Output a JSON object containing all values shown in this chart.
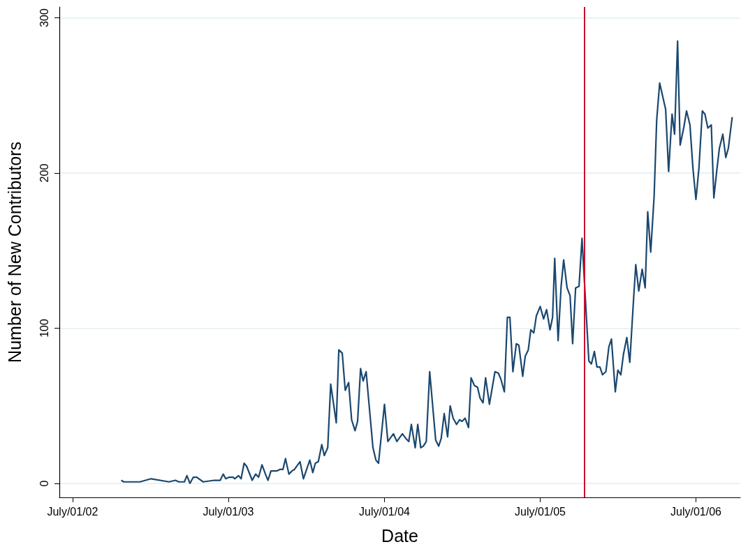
{
  "chart_data": {
    "type": "line",
    "xlabel": "Date",
    "ylabel": "Number of New Contributors",
    "grid": "y",
    "marker": "none",
    "line_style": "solid",
    "xlim": [
      "2002-05-31",
      "2006-10-13"
    ],
    "ylim": [
      -9,
      307
    ],
    "xticks": [
      {
        "value": "2002-07-01",
        "label": "July/01/02"
      },
      {
        "value": "2003-07-01",
        "label": "July/01/03"
      },
      {
        "value": "2004-07-01",
        "label": "July/01/04"
      },
      {
        "value": "2005-07-01",
        "label": "July/01/05"
      },
      {
        "value": "2006-07-01",
        "label": "July/01/06"
      }
    ],
    "yticks": [
      0,
      100,
      200,
      300
    ],
    "ref_lines": [
      {
        "axis": "x",
        "value": "2005-10-13",
        "color": "#c8102e"
      }
    ],
    "series": [
      {
        "color": "#1a476f",
        "x": [
          "2002-10-23",
          "2002-10-29",
          "2002-12-06",
          "2003-01-01",
          "2003-02-12",
          "2003-02-27",
          "2003-03-07",
          "2003-03-20",
          "2003-03-26",
          "2003-04-02",
          "2003-04-10",
          "2003-04-18",
          "2003-05-03",
          "2003-05-29",
          "2003-06-12",
          "2003-06-19",
          "2003-06-25",
          "2003-07-03",
          "2003-07-12",
          "2003-07-16",
          "2003-07-25",
          "2003-07-31",
          "2003-08-07",
          "2003-08-13",
          "2003-08-26",
          "2003-09-03",
          "2003-09-10",
          "2003-09-18",
          "2003-09-26",
          "2003-10-02",
          "2003-10-09",
          "2003-10-22",
          "2003-10-30",
          "2003-11-06",
          "2003-11-12",
          "2003-11-20",
          "2003-11-27",
          "2003-12-03",
          "2003-12-16",
          "2003-12-24",
          "2004-01-08",
          "2004-01-15",
          "2004-01-21",
          "2004-01-28",
          "2004-02-05",
          "2004-02-11",
          "2004-02-19",
          "2004-02-26",
          "2004-03-10",
          "2004-03-16",
          "2004-03-24",
          "2004-03-31",
          "2004-04-08",
          "2004-04-15",
          "2004-04-23",
          "2004-04-29",
          "2004-05-06",
          "2004-05-12",
          "2004-05-19",
          "2004-06-04",
          "2004-06-11",
          "2004-06-17",
          "2004-07-01",
          "2004-07-09",
          "2004-07-22",
          "2004-07-30",
          "2004-08-12",
          "2004-08-20",
          "2004-08-27",
          "2004-09-02",
          "2004-09-11",
          "2004-09-17",
          "2004-09-24",
          "2004-09-30",
          "2004-10-07",
          "2004-10-15",
          "2004-10-29",
          "2004-11-05",
          "2004-11-11",
          "2004-11-18",
          "2004-11-26",
          "2004-12-02",
          "2004-12-09",
          "2004-12-17",
          "2004-12-24",
          "2004-12-30",
          "2005-01-06",
          "2005-01-14",
          "2005-01-20",
          "2005-01-28",
          "2005-02-04",
          "2005-02-10",
          "2005-02-17",
          "2005-02-23",
          "2005-03-04",
          "2005-03-17",
          "2005-03-25",
          "2005-03-31",
          "2005-04-08",
          "2005-04-15",
          "2005-04-21",
          "2005-04-28",
          "2005-05-06",
          "2005-05-12",
          "2005-05-21",
          "2005-05-27",
          "2005-06-03",
          "2005-06-09",
          "2005-06-16",
          "2005-06-22",
          "2005-07-01",
          "2005-07-09",
          "2005-07-16",
          "2005-07-24",
          "2005-07-30",
          "2005-08-04",
          "2005-08-12",
          "2005-08-19",
          "2005-08-25",
          "2005-09-02",
          "2005-09-09",
          "2005-09-15",
          "2005-09-22",
          "2005-09-30",
          "2005-10-07",
          "2005-10-23",
          "2005-10-29",
          "2005-11-05",
          "2005-11-11",
          "2005-11-18",
          "2005-11-24",
          "2005-12-02",
          "2005-12-09",
          "2005-12-15",
          "2005-12-24",
          "2005-12-30",
          "2006-01-06",
          "2006-01-12",
          "2006-01-20",
          "2006-01-27",
          "2006-02-04",
          "2006-02-10",
          "2006-02-17",
          "2006-02-25",
          "2006-03-04",
          "2006-03-10",
          "2006-03-17",
          "2006-03-25",
          "2006-03-31",
          "2006-04-07",
          "2006-04-21",
          "2006-04-28",
          "2006-05-06",
          "2006-05-12",
          "2006-05-19",
          "2006-05-25",
          "2006-06-03",
          "2006-06-09",
          "2006-06-17",
          "2006-06-24",
          "2006-07-01",
          "2006-07-08",
          "2006-07-16",
          "2006-07-22",
          "2006-07-29",
          "2006-08-06",
          "2006-08-12",
          "2006-08-19",
          "2006-08-25",
          "2006-09-02",
          "2006-09-09",
          "2006-09-15",
          "2006-09-24"
        ],
        "values": [
          2,
          1,
          1,
          3,
          1,
          2,
          1,
          1,
          5,
          0,
          4,
          4,
          1,
          2,
          2,
          6,
          3,
          4,
          4,
          3,
          5,
          3,
          13,
          11,
          2,
          6,
          4,
          12,
          6,
          2,
          8,
          8,
          9,
          9,
          16,
          6,
          8,
          9,
          14,
          3,
          15,
          7,
          13,
          14,
          25,
          18,
          23,
          64,
          39,
          86,
          84,
          60,
          65,
          41,
          34,
          40,
          74,
          66,
          72,
          23,
          15,
          13,
          51,
          27,
          32,
          27,
          32,
          29,
          27,
          38,
          23,
          38,
          23,
          24,
          27,
          72,
          28,
          24,
          29,
          45,
          30,
          50,
          42,
          38,
          41,
          40,
          42,
          36,
          68,
          63,
          62,
          55,
          52,
          68,
          51,
          72,
          71,
          67,
          59,
          107,
          107,
          72,
          90,
          89,
          69,
          82,
          86,
          99,
          97,
          108,
          114,
          106,
          112,
          99,
          107,
          145,
          92,
          127,
          144,
          126,
          121,
          90,
          126,
          127,
          158,
          79,
          77,
          85,
          75,
          75,
          70,
          72,
          88,
          93,
          59,
          73,
          70,
          83,
          94,
          78,
          115,
          141,
          124,
          138,
          126,
          175,
          149,
          185,
          234,
          258,
          241,
          201,
          238,
          225,
          285,
          218,
          230,
          240,
          231,
          203,
          183,
          203,
          240,
          238,
          229,
          231,
          184,
          202,
          216,
          225,
          210,
          216,
          236
        ]
      }
    ]
  }
}
